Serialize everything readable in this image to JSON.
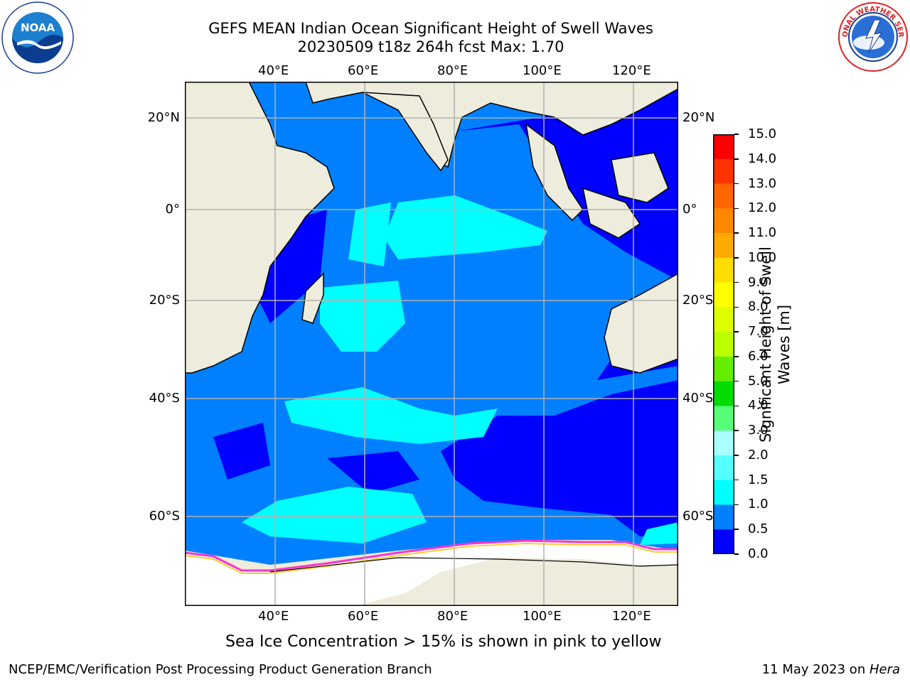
{
  "title": {
    "line1": "GEFS MEAN Indian Ocean Significant Height of Swell Waves",
    "line2": "20230509 t18z 264h fcst   Max: 1.70"
  },
  "logos": {
    "left": {
      "icon": "noaa-logo",
      "text": "NOAA",
      "ring_text": "NATIONAL OCEANIC AND ATMOSPHERIC ADMINISTRATION · U.S. DEPARTMENT OF COMMERCE"
    },
    "right": {
      "icon": "nws-logo",
      "ring_text": "NATIONAL WEATHER SERVICE"
    }
  },
  "map": {
    "lon_labels": [
      "40°E",
      "60°E",
      "80°E",
      "100°E",
      "120°E"
    ],
    "lat_labels": [
      "20°N",
      "0°",
      "20°S",
      "40°S",
      "60°S"
    ],
    "colors": {
      "land": "#eeecdc",
      "ocean_low": "#0000ff",
      "ocean_mid": "#0080ff",
      "ocean_high": "#00ffff",
      "ocean_high2": "#80ffff",
      "ice": "#ffffff",
      "ice_edge": "#ff33cc",
      "grid": "#b0b0b0"
    }
  },
  "colorbar": {
    "title": "Significant Height of Swell Waves [m]",
    "ticks": [
      "15.0",
      "14.0",
      "13.0",
      "12.0",
      "11.0",
      "10.0",
      "9.0",
      "8.0",
      "7.0",
      "6.0",
      "5.0",
      "4.0",
      "3.0",
      "2.0",
      "1.5",
      "1.0",
      "0.5",
      "0.0"
    ],
    "colors": [
      "#ff0000",
      "#ff3300",
      "#ff6600",
      "#ff8800",
      "#ffaa00",
      "#ffdd00",
      "#ffff00",
      "#ddff00",
      "#bbff00",
      "#66ee00",
      "#00dd00",
      "#55ff77",
      "#aaffff",
      "#55ffff",
      "#00ffff",
      "#0080ff",
      "#0000ff"
    ]
  },
  "note": "Sea Ice Concentration > 15% is shown in pink to yellow",
  "footer": {
    "left": "NCEP/EMC/Verification Post Processing Product Generation Branch",
    "right_date": "11 May 2023 on ",
    "right_host": "Hera"
  }
}
